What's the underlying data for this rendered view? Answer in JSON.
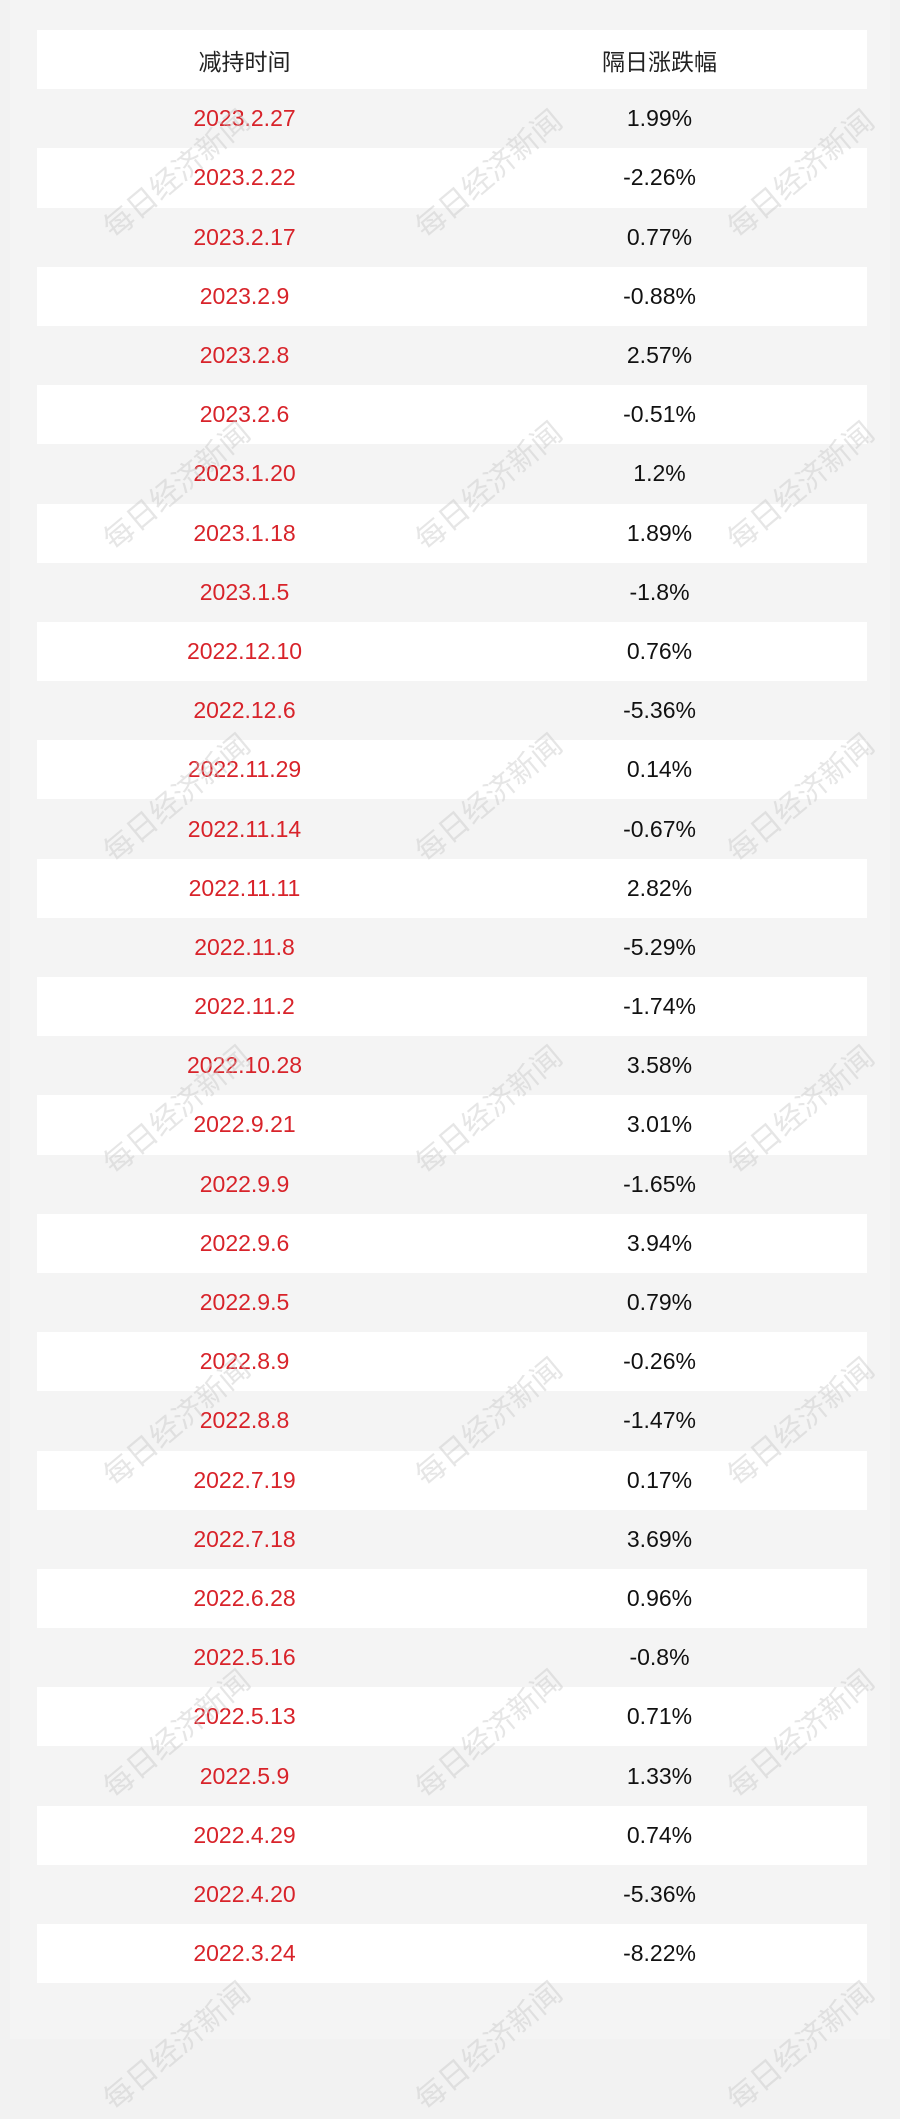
{
  "watermark": "每日经济新闻",
  "table": {
    "header": [
      "减持时间",
      "隔日涨跌幅"
    ],
    "rows": [
      [
        "2023.2.27",
        "1.99%"
      ],
      [
        "2023.2.22",
        "-2.26%"
      ],
      [
        "2023.2.17",
        "0.77%"
      ],
      [
        "2023.2.9",
        "-0.88%"
      ],
      [
        "2023.2.8",
        "2.57%"
      ],
      [
        "2023.2.6",
        "-0.51%"
      ],
      [
        "2023.1.20",
        "1.2%"
      ],
      [
        "2023.1.18",
        "1.89%"
      ],
      [
        "2023.1.5",
        "-1.8%"
      ],
      [
        "2022.12.10",
        "0.76%"
      ],
      [
        "2022.12.6",
        "-5.36%"
      ],
      [
        "2022.11.29",
        "0.14%"
      ],
      [
        "2022.11.14",
        "-0.67%"
      ],
      [
        "2022.11.11",
        "2.82%"
      ],
      [
        "2022.11.8",
        "-5.29%"
      ],
      [
        "2022.11.2",
        "-1.74%"
      ],
      [
        "2022.10.28",
        "3.58%"
      ],
      [
        "2022.9.21",
        "3.01%"
      ],
      [
        "2022.9.9",
        "-1.65%"
      ],
      [
        "2022.9.6",
        "3.94%"
      ],
      [
        "2022.9.5",
        "0.79%"
      ],
      [
        "2022.8.9",
        "-0.26%"
      ],
      [
        "2022.8.8",
        "-1.47%"
      ],
      [
        "2022.7.19",
        "0.17%"
      ],
      [
        "2022.7.18",
        "3.69%"
      ],
      [
        "2022.6.28",
        "0.96%"
      ],
      [
        "2022.5.16",
        "-0.8%"
      ],
      [
        "2022.5.13",
        "0.71%"
      ],
      [
        "2022.5.9",
        "1.33%"
      ],
      [
        "2022.4.29",
        "0.74%"
      ],
      [
        "2022.4.20",
        "-5.36%"
      ],
      [
        "2022.3.24",
        "-8.22%"
      ]
    ]
  }
}
